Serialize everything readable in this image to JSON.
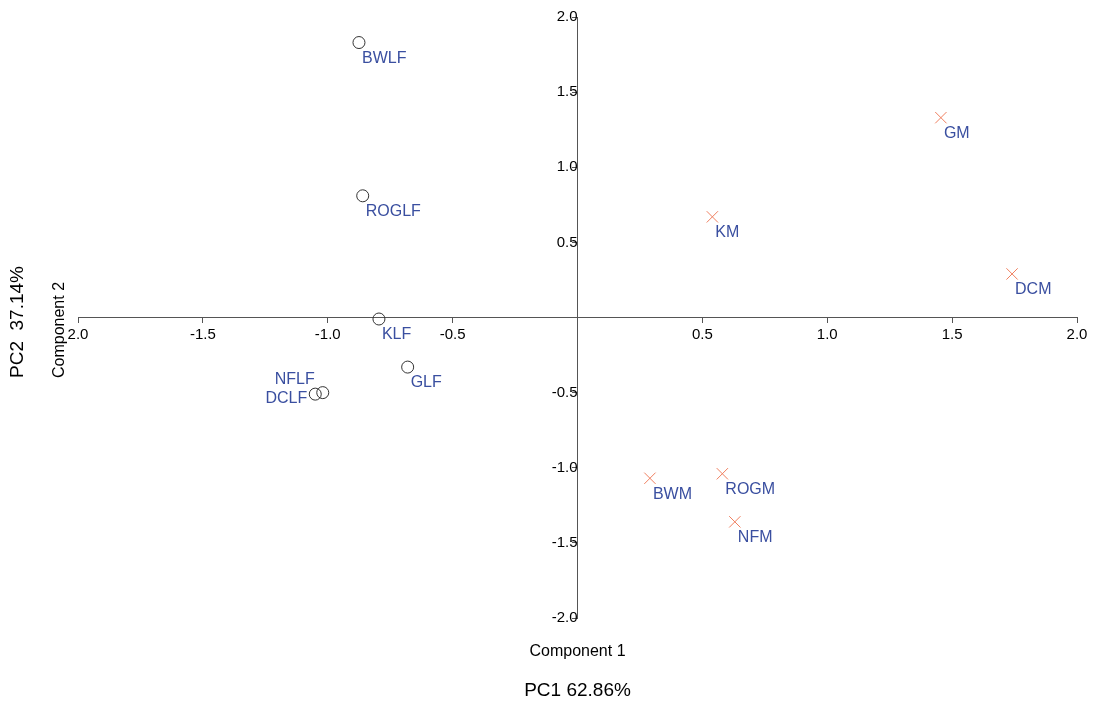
{
  "chart_data": {
    "type": "scatter",
    "xlabel": "Component 1",
    "ylabel": "Component 2",
    "xlim": [
      -2,
      2
    ],
    "ylim": [
      -2,
      2
    ],
    "xticks": [
      {
        "value": -2,
        "label": "2.0"
      },
      -1.5,
      {
        "value": -1,
        "label": "-1.0"
      },
      -0.5,
      0.5,
      {
        "value": 1,
        "label": "1.0"
      },
      1.5,
      {
        "value": 2,
        "label": "2.0"
      }
    ],
    "yticks": [
      {
        "value": -2,
        "label": "-2.0"
      },
      -1.5,
      {
        "value": -1,
        "label": "-1.0"
      },
      -0.5,
      0.5,
      {
        "value": 1,
        "label": "1.0"
      },
      1.5,
      {
        "value": 2,
        "label": "2.0"
      }
    ],
    "grid": false,
    "legend": false,
    "series": [
      {
        "color": "#333333",
        "marker": "circle",
        "x": [
          -0.875,
          -0.86,
          -0.795,
          -0.68,
          -1.02,
          -1.05
        ],
        "values": [
          1.83,
          0.81,
          -0.01,
          -0.33,
          -0.5,
          -0.51
        ]
      },
      {
        "color": "#f08060",
        "marker": "cross",
        "x": [
          1.455,
          0.54,
          1.74,
          0.29,
          0.58,
          0.63
        ],
        "values": [
          1.33,
          0.67,
          0.29,
          -1.07,
          -1.04,
          -1.36
        ]
      }
    ],
    "annotations": [
      {
        "text": "BWLF",
        "x": -0.875,
        "y": 1.83
      },
      {
        "text": "ROGLF",
        "x": -0.86,
        "y": 0.81
      },
      {
        "text": "KLF",
        "x": -0.795,
        "y": -0.01
      },
      {
        "text": "GLF",
        "x": -0.68,
        "y": -0.33
      },
      {
        "text": "NFLF",
        "x": -1.02,
        "y": -0.5
      },
      {
        "text": "DCLF",
        "x": -1.05,
        "y": -0.51
      },
      {
        "text": "GM",
        "x": 1.455,
        "y": 1.33
      },
      {
        "text": "KM",
        "x": 0.54,
        "y": 0.67
      },
      {
        "text": "DCM",
        "x": 1.74,
        "y": 0.29
      },
      {
        "text": "BWM",
        "x": 0.29,
        "y": -1.07
      },
      {
        "text": "ROGM",
        "x": 0.58,
        "y": -1.04
      },
      {
        "text": "NFM",
        "x": 0.63,
        "y": -1.36
      },
      "PC1 62.86%",
      "PC2  37.14%"
    ]
  }
}
